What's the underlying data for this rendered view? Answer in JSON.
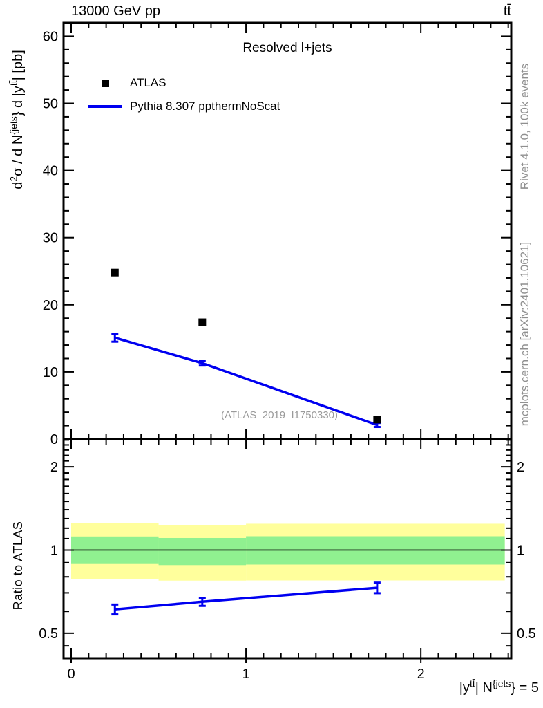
{
  "header": {
    "beam": "13000 GeV pp",
    "process": "tt̄"
  },
  "plot_title": "Resolved l+jets",
  "watermark": "(ATLAS_2019_I1750330)",
  "side_notes": {
    "rivet": "Rivet 4.1.0,   100k events",
    "mcplots": "mcplots.cern.ch [arXiv:2401.10621]"
  },
  "legend": [
    {
      "label": "ATLAS",
      "marker": "black-square",
      "color": "#000000"
    },
    {
      "label": "Pythia 8.307 ppthermNoScat",
      "marker": "line",
      "color": "#0000f0"
    }
  ],
  "labels": {
    "main_y_parts": [
      {
        "t": "d"
      },
      {
        "t": "2",
        "sup": true
      },
      {
        "t": "σ / d N"
      },
      {
        "t": "{jets",
        "sup": true
      },
      {
        "t": "} d |y"
      },
      {
        "t": "tt̄",
        "sup": true
      },
      {
        "t": "| [pb]"
      }
    ],
    "ratio_y": "Ratio to ATLAS",
    "x_parts": [
      {
        "t": "|y"
      },
      {
        "t": "tt̄",
        "sup": true
      },
      {
        "t": "| N"
      },
      {
        "t": "{jets",
        "sup": true
      },
      {
        "t": "} = 5"
      }
    ]
  },
  "colors": {
    "mc_line": "#0000f0",
    "band_outer": "#ffff9c",
    "band_inner": "#90f190",
    "frame": "#000000",
    "gray_text": "#8f8f8f"
  },
  "chart_data": [
    {
      "panel": "main",
      "type": "scatter",
      "title": "Resolved l+jets",
      "ylabel": "d^2(sigma) / d N^{jets} d |y^ttbar| [pb]",
      "xlim": [
        -0.0435,
        2.517
      ],
      "ylim": [
        0,
        62
      ],
      "yticks_major": [
        0,
        10,
        20,
        30,
        40,
        50,
        60
      ],
      "ytick_minor_step": 2,
      "xticks_major": [
        0,
        1,
        2
      ],
      "xtick_minor_step": 0.1,
      "grid": false,
      "legend_position": "top-left",
      "series": [
        {
          "name": "ATLAS",
          "type": "points",
          "marker": "square",
          "color": "#000000",
          "x": [
            0.25,
            0.75,
            1.75
          ],
          "y": [
            24.8,
            17.4,
            2.9
          ]
        },
        {
          "name": "Pythia 8.307 ppthermNoScat",
          "type": "line+points",
          "color": "#0000f0",
          "x": [
            0.25,
            0.75,
            1.75
          ],
          "y": [
            15.1,
            11.3,
            2.1
          ],
          "yerr": [
            0.6,
            0.35,
            0.3
          ]
        }
      ]
    },
    {
      "panel": "ratio",
      "type": "line",
      "ylabel": "Ratio to ATLAS",
      "xlabel": "|y^ttbar| N^{jets} = 5",
      "yscale": "log",
      "xlim": [
        -0.0435,
        2.517
      ],
      "ylim": [
        0.406,
        2.52
      ],
      "yticks_major": [
        0.5,
        1,
        2
      ],
      "yticks_minor": [
        0.45,
        0.6,
        0.7,
        0.8,
        0.9,
        1.1,
        1.2,
        1.3,
        1.4,
        1.5,
        1.6,
        1.7,
        1.8,
        1.9,
        2.1,
        2.2,
        2.3,
        2.4,
        2.5
      ],
      "xticks_major": [
        0,
        1,
        2
      ],
      "xtick_minor_step": 0.1,
      "reference_line": 1,
      "bands": [
        {
          "name": "data-uncertainty-outer",
          "color": "#ffff9c",
          "bins": [
            {
              "x": [
                0,
                0.5
              ],
              "y": [
                0.785,
                1.25
              ]
            },
            {
              "x": [
                0.5,
                1
              ],
              "y": [
                0.775,
                1.232
              ]
            },
            {
              "x": [
                1,
                2.48
              ],
              "y": [
                0.776,
                1.245
              ]
            }
          ]
        },
        {
          "name": "data-uncertainty-inner",
          "color": "#90f190",
          "bins": [
            {
              "x": [
                0,
                0.5
              ],
              "y": [
                0.89,
                1.12
              ]
            },
            {
              "x": [
                0.5,
                1
              ],
              "y": [
                0.882,
                1.106
              ]
            },
            {
              "x": [
                1,
                2.48
              ],
              "y": [
                0.886,
                1.122
              ]
            }
          ]
        }
      ],
      "series": [
        {
          "name": "Pythia/ATLAS",
          "type": "line+points",
          "color": "#0000f0",
          "x": [
            0.25,
            0.75,
            1.75
          ],
          "y": [
            0.61,
            0.65,
            0.73
          ],
          "yerr": [
            0.025,
            0.022,
            0.032
          ]
        }
      ]
    }
  ]
}
